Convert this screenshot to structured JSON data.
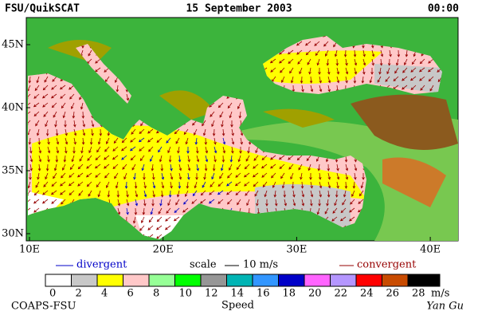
{
  "header": {
    "left": "FSU/QuikSCAT",
    "center": "15 September 2003",
    "right": "00:00"
  },
  "map": {
    "lat_labels": [
      "45N",
      "40N",
      "35N",
      "30N"
    ],
    "lon_labels": [
      "10E",
      "20E",
      "30E",
      "40E"
    ]
  },
  "legend": {
    "divergent": "divergent",
    "scale": "scale",
    "scale_value": "10 m/s",
    "convergent": "convergent"
  },
  "colorbar": {
    "ticks": [
      "0",
      "2",
      "4",
      "6",
      "8",
      "10",
      "12",
      "14",
      "16",
      "18",
      "20",
      "22",
      "24",
      "26",
      "28"
    ],
    "colors": [
      "#ffffff",
      "#c8c8c8",
      "#ffff00",
      "#ffc8c8",
      "#96ff96",
      "#00ff00",
      "#969696",
      "#00b4b4",
      "#3296ff",
      "#0000c8",
      "#ff64ff",
      "#b496ff",
      "#ff0000",
      "#c84b00",
      "#000000"
    ],
    "unit": "m/s",
    "label": "Speed"
  },
  "footer": {
    "left": "COAPS-FSU",
    "right": "Yan Gu"
  }
}
